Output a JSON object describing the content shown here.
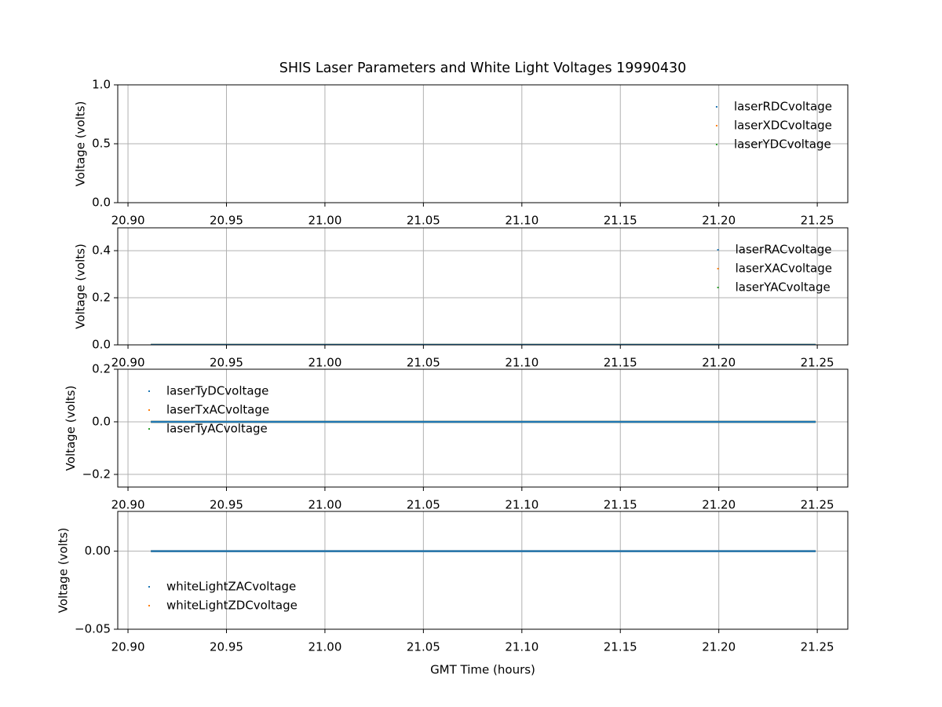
{
  "chart_data": [
    {
      "type": "line",
      "title": "SHIS Laser Parameters and White Light Voltages 19990430",
      "ylabel": "Voltage (volts)",
      "x": [
        20.9116,
        21.2492
      ],
      "series": [
        {
          "name": "laserRDCvoltage",
          "color": "#1f77b4",
          "values": [
            null,
            null
          ]
        },
        {
          "name": "laserXDCvoltage",
          "color": "#ff7f0e",
          "values": [
            null,
            null
          ]
        },
        {
          "name": "laserYDCvoltage",
          "color": "#2ca02c",
          "values": [
            null,
            null
          ]
        }
      ],
      "xlim": [
        20.8948,
        21.2655
      ],
      "xticks": [
        {
          "value": 20.9,
          "label": "20.90"
        },
        {
          "value": 20.95,
          "label": "20.95"
        },
        {
          "value": 21.0,
          "label": "21.00"
        },
        {
          "value": 21.05,
          "label": "21.05"
        },
        {
          "value": 21.1,
          "label": "21.10"
        },
        {
          "value": 21.15,
          "label": "21.15"
        },
        {
          "value": 21.2,
          "label": "21.20"
        },
        {
          "value": 21.25,
          "label": "21.25"
        }
      ],
      "ylim": [
        0,
        1
      ],
      "yticks": [
        {
          "value": 0,
          "label": "0.0"
        },
        0.5,
        {
          "value": 1,
          "label": "1.0"
        }
      ],
      "grid": true,
      "legend_loc": "upper right"
    },
    {
      "type": "line",
      "ylabel": "Voltage (volts)",
      "x": [
        20.9116,
        21.2492
      ],
      "series": [
        {
          "name": "laserRACvoltage",
          "color": "#1f77b4",
          "values": [
            0,
            0
          ]
        },
        {
          "name": "laserXACvoltage",
          "color": "#ff7f0e",
          "values": [
            0,
            0
          ]
        },
        {
          "name": "laserYACvoltage",
          "color": "#2ca02c",
          "values": [
            0,
            0
          ]
        }
      ],
      "xlim": [
        20.8948,
        21.2655
      ],
      "xticks": [
        {
          "value": 20.9,
          "label": "20.90"
        },
        {
          "value": 20.95,
          "label": "20.95"
        },
        {
          "value": 21.0,
          "label": "21.00"
        },
        {
          "value": 21.05,
          "label": "21.05"
        },
        {
          "value": 21.1,
          "label": "21.10"
        },
        {
          "value": 21.15,
          "label": "21.15"
        },
        {
          "value": 21.2,
          "label": "21.20"
        },
        {
          "value": 21.25,
          "label": "21.25"
        }
      ],
      "ylim": [
        0,
        0.497
      ],
      "yticks": [
        {
          "value": 0,
          "label": "0.0"
        },
        0.2,
        0.4
      ],
      "grid": true,
      "legend_loc": "upper right"
    },
    {
      "type": "line",
      "ylabel": "Voltage (volts)",
      "x": [
        20.9116,
        21.2492
      ],
      "series": [
        {
          "name": "laserTyDCvoltage",
          "color": "#1f77b4",
          "values": [
            0,
            0
          ]
        },
        {
          "name": "laserTxACvoltage",
          "color": "#ff7f0e",
          "values": [
            0,
            0
          ]
        },
        {
          "name": "laserTyACvoltage",
          "color": "#2ca02c",
          "values": [
            0,
            0
          ]
        }
      ],
      "xlim": [
        20.8948,
        21.2655
      ],
      "xticks": [
        {
          "value": 20.9,
          "label": "20.90"
        },
        {
          "value": 20.95,
          "label": "20.95"
        },
        {
          "value": 21.0,
          "label": "21.00"
        },
        {
          "value": 21.05,
          "label": "21.05"
        },
        {
          "value": 21.1,
          "label": "21.10"
        },
        {
          "value": 21.15,
          "label": "21.15"
        },
        {
          "value": 21.2,
          "label": "21.20"
        },
        {
          "value": 21.25,
          "label": "21.25"
        }
      ],
      "ylim": [
        -0.248,
        0.2
      ],
      "yticks": [
        {
          "value": -0.2,
          "label": "−0.2"
        },
        {
          "value": 0,
          "label": "0.0"
        },
        0.2
      ],
      "grid": true,
      "legend_loc": "upper left"
    },
    {
      "type": "line",
      "ylabel": "Voltage (volts)",
      "xlabel": "GMT Time (hours)",
      "x": [
        20.9116,
        21.2492
      ],
      "series": [
        {
          "name": "whiteLightZACvoltage",
          "color": "#1f77b4",
          "values": [
            0,
            0
          ]
        },
        {
          "name": "whiteLightZDCvoltage",
          "color": "#ff7f0e",
          "values": [
            0,
            0
          ]
        }
      ],
      "xlim": [
        20.8948,
        21.2655
      ],
      "xticks": [
        {
          "value": 20.9,
          "label": "20.90"
        },
        {
          "value": 20.95,
          "label": "20.95"
        },
        {
          "value": 21.0,
          "label": "21.00"
        },
        {
          "value": 21.05,
          "label": "21.05"
        },
        {
          "value": 21.1,
          "label": "21.10"
        },
        {
          "value": 21.15,
          "label": "21.15"
        },
        {
          "value": 21.2,
          "label": "21.20"
        },
        {
          "value": 21.25,
          "label": "21.25"
        }
      ],
      "ylim": [
        -0.05,
        0.0255
      ],
      "yticks": [
        {
          "value": -0.05,
          "label": "−0.05"
        },
        {
          "value": 0,
          "label": "0.00"
        }
      ],
      "grid": true,
      "legend_loc": "lower left"
    }
  ]
}
